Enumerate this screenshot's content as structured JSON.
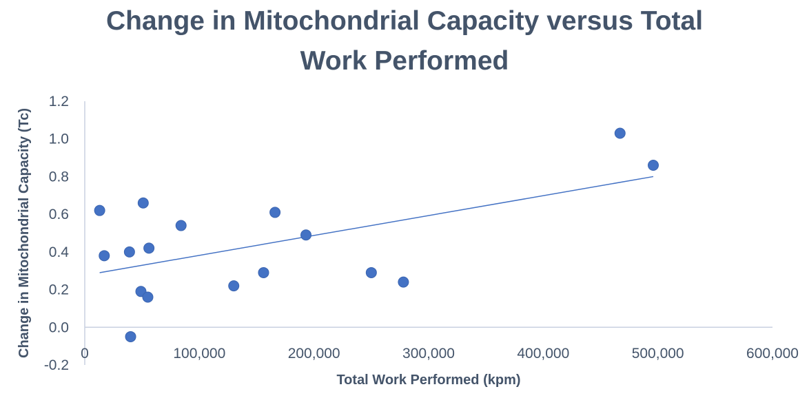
{
  "chart_data": {
    "type": "scatter",
    "title_lines": [
      "Change in Mitochondrial Capacity versus Total",
      "Work Performed"
    ],
    "xlabel": "Total Work Performed (kpm)",
    "ylabel": "Change in Mitochondrial Capacity (Tc)",
    "xlim": [
      0,
      600000
    ],
    "ylim": [
      -0.2,
      1.2
    ],
    "x_ticks": [
      0,
      100000,
      200000,
      300000,
      400000,
      500000,
      600000
    ],
    "x_tick_labels": [
      "0",
      "100,000",
      "200,000",
      "300,000",
      "400,000",
      "500,000",
      "600,000"
    ],
    "y_ticks": [
      -0.2,
      0.0,
      0.2,
      0.4,
      0.6,
      0.8,
      1.0,
      1.2
    ],
    "y_tick_labels": [
      "-0.2",
      "0.0",
      "0.2",
      "0.4",
      "0.6",
      "0.8",
      "1.0",
      "1.2"
    ],
    "grid": false,
    "legend": "none",
    "marker_color": "#4472c4",
    "trendline_color": "#4472c4",
    "axis_color": "#c8d0e0",
    "series": [
      {
        "points": [
          {
            "x": 13000,
            "y": 0.62
          },
          {
            "x": 17000,
            "y": 0.38
          },
          {
            "x": 39000,
            "y": 0.4
          },
          {
            "x": 40000,
            "y": -0.05
          },
          {
            "x": 49000,
            "y": 0.19
          },
          {
            "x": 51000,
            "y": 0.66
          },
          {
            "x": 55000,
            "y": 0.16
          },
          {
            "x": 56000,
            "y": 0.42
          },
          {
            "x": 84000,
            "y": 0.54
          },
          {
            "x": 130000,
            "y": 0.22
          },
          {
            "x": 156000,
            "y": 0.29
          },
          {
            "x": 166000,
            "y": 0.61
          },
          {
            "x": 193000,
            "y": 0.49
          },
          {
            "x": 250000,
            "y": 0.29
          },
          {
            "x": 278000,
            "y": 0.24
          },
          {
            "x": 467000,
            "y": 1.03
          },
          {
            "x": 496000,
            "y": 0.86
          }
        ]
      }
    ],
    "trendline": {
      "x1": 13000,
      "y1": 0.29,
      "x2": 496000,
      "y2": 0.8
    }
  }
}
